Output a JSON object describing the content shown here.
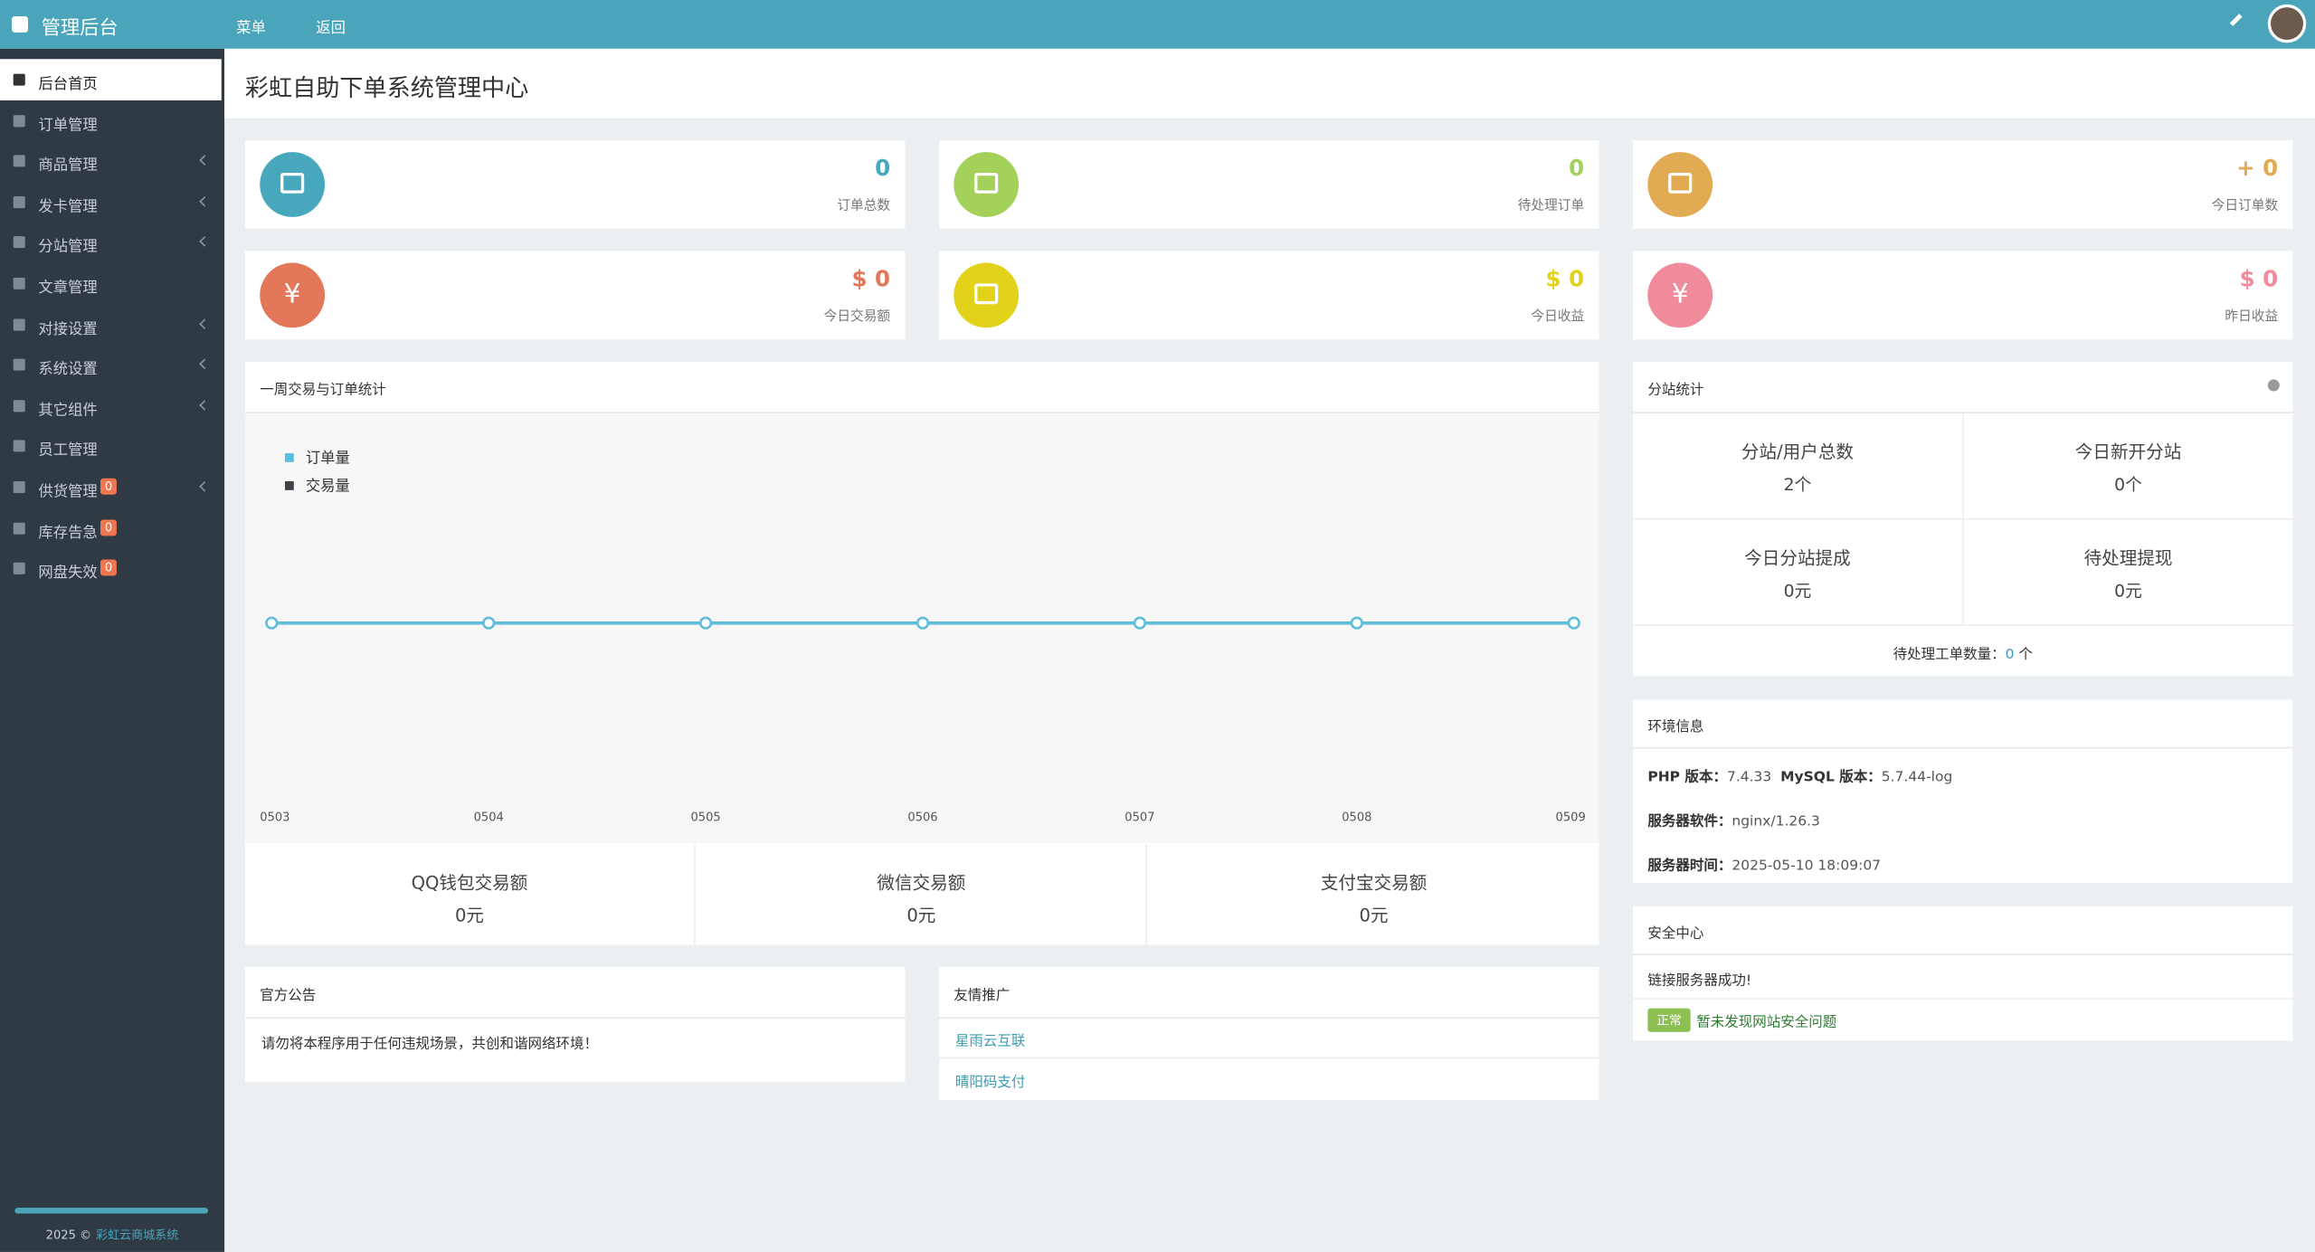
{
  "topbar": {
    "brand": "管理后台",
    "menu": "菜单",
    "back": "返回"
  },
  "sidebar": {
    "items": [
      {
        "label": "后台首页"
      },
      {
        "label": "订单管理"
      },
      {
        "label": "商品管理",
        "arrow": true
      },
      {
        "label": "发卡管理",
        "arrow": true
      },
      {
        "label": "分站管理",
        "arrow": true
      },
      {
        "label": "文章管理"
      },
      {
        "label": "对接设置",
        "arrow": true
      },
      {
        "label": "系统设置",
        "arrow": true
      },
      {
        "label": "其它组件",
        "arrow": true
      },
      {
        "label": "员工管理"
      },
      {
        "label": "供货管理",
        "badge": 0,
        "arrow": true
      },
      {
        "label": "库存告急",
        "badge": 0
      },
      {
        "label": "网盘失效",
        "badge": 0
      }
    ],
    "footer_year": "2025 ©",
    "footer_link": "彩虹云商城系统"
  },
  "page_title": "彩虹自助下单系统管理中心",
  "stats": [
    {
      "value": "0",
      "label": "订单总数",
      "color": "#47a7bd"
    },
    {
      "value": "0",
      "label": "待处理订单",
      "color": "#a3d159"
    },
    {
      "value": "+ 0",
      "label": "今日订单数",
      "color": "#e0ab52"
    },
    {
      "value": "$ 0",
      "label": "今日交易额",
      "color": "#e2775a",
      "icon": "¥"
    },
    {
      "value": "$ 0",
      "label": "今日收益",
      "color": "#e3d21a"
    },
    {
      "value": "$ 0",
      "label": "昨日收益",
      "color": "#f08b9b",
      "icon": "¥"
    }
  ],
  "chart": {
    "title": "一周交易与订单统计",
    "categories": [
      "0503",
      "0504",
      "0505",
      "0506",
      "0507",
      "0508",
      "0509"
    ],
    "series": [
      {
        "name": "订单量",
        "color": "#5bc0de",
        "values": [
          0,
          0,
          0,
          0,
          0,
          0,
          0
        ]
      },
      {
        "name": "交易量",
        "color": "#3b4148",
        "values": [
          0,
          0,
          0,
          0,
          0,
          0,
          0
        ]
      }
    ]
  },
  "payments": [
    {
      "label": "QQ钱包交易额",
      "value": "0元"
    },
    {
      "label": "微信交易额",
      "value": "0元"
    },
    {
      "label": "支付宝交易额",
      "value": "0元"
    }
  ],
  "notice": {
    "title": "官方公告",
    "text": "请勿将本程序用于任何违规场景，共创和谐网络环境！"
  },
  "links": {
    "title": "友情推广",
    "items": [
      "星雨云互联",
      "晴阳码支付"
    ]
  },
  "substats": {
    "title": "分站统计",
    "cells": [
      {
        "label": "分站/用户总数",
        "value": "2个"
      },
      {
        "label": "今日新开分站",
        "value": "0个"
      },
      {
        "label": "今日分站提成",
        "value": "0元"
      },
      {
        "label": "待处理提现",
        "value": "0元"
      }
    ],
    "tickets_label": "待处理工单数量：",
    "tickets_value": 0,
    "tickets_unit": "个"
  },
  "env": {
    "title": "环境信息",
    "php_label": "PHP 版本：",
    "php": "7.4.33",
    "mysql_label": "MySQL 版本：",
    "mysql": "5.7.44-log",
    "server_label": "服务器软件：",
    "server": "nginx/1.26.3",
    "time_label": "服务器时间：",
    "time": "2025-05-10 18:09:07"
  },
  "security": {
    "title": "安全中心",
    "status": "链接服务器成功!",
    "badge": "正常",
    "message": "暂未发现网站安全问题"
  }
}
